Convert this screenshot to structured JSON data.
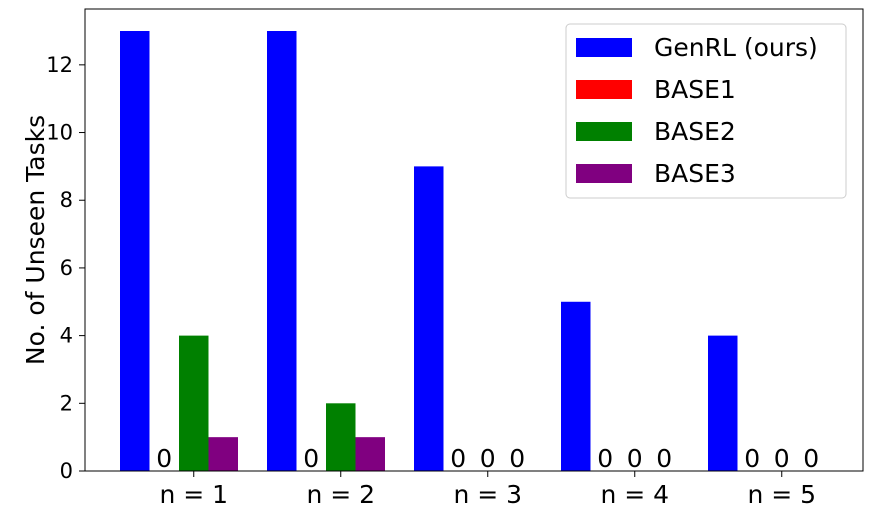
{
  "chart_data": {
    "type": "bar",
    "categories": [
      "n = 1",
      "n = 2",
      "n = 3",
      "n = 4",
      "n = 5"
    ],
    "series": [
      {
        "name": "GenRL (ours)",
        "color": "#0000ff",
        "values": [
          13,
          13,
          9,
          5,
          4
        ]
      },
      {
        "name": "BASE1",
        "color": "#ff0000",
        "values": [
          0,
          0,
          0,
          0,
          0
        ]
      },
      {
        "name": "BASE2",
        "color": "#008000",
        "values": [
          4,
          2,
          0,
          0,
          0
        ]
      },
      {
        "name": "BASE3",
        "color": "#800080",
        "values": [
          1,
          1,
          0,
          0,
          0
        ]
      }
    ],
    "zero_label": "0",
    "title": "",
    "xlabel": "",
    "ylabel": "No. of Unseen Tasks",
    "ylim": [
      0,
      13.65
    ],
    "yticks": [
      0,
      2,
      4,
      6,
      8,
      10,
      12
    ],
    "grid": false,
    "legend_position": "top-right"
  }
}
